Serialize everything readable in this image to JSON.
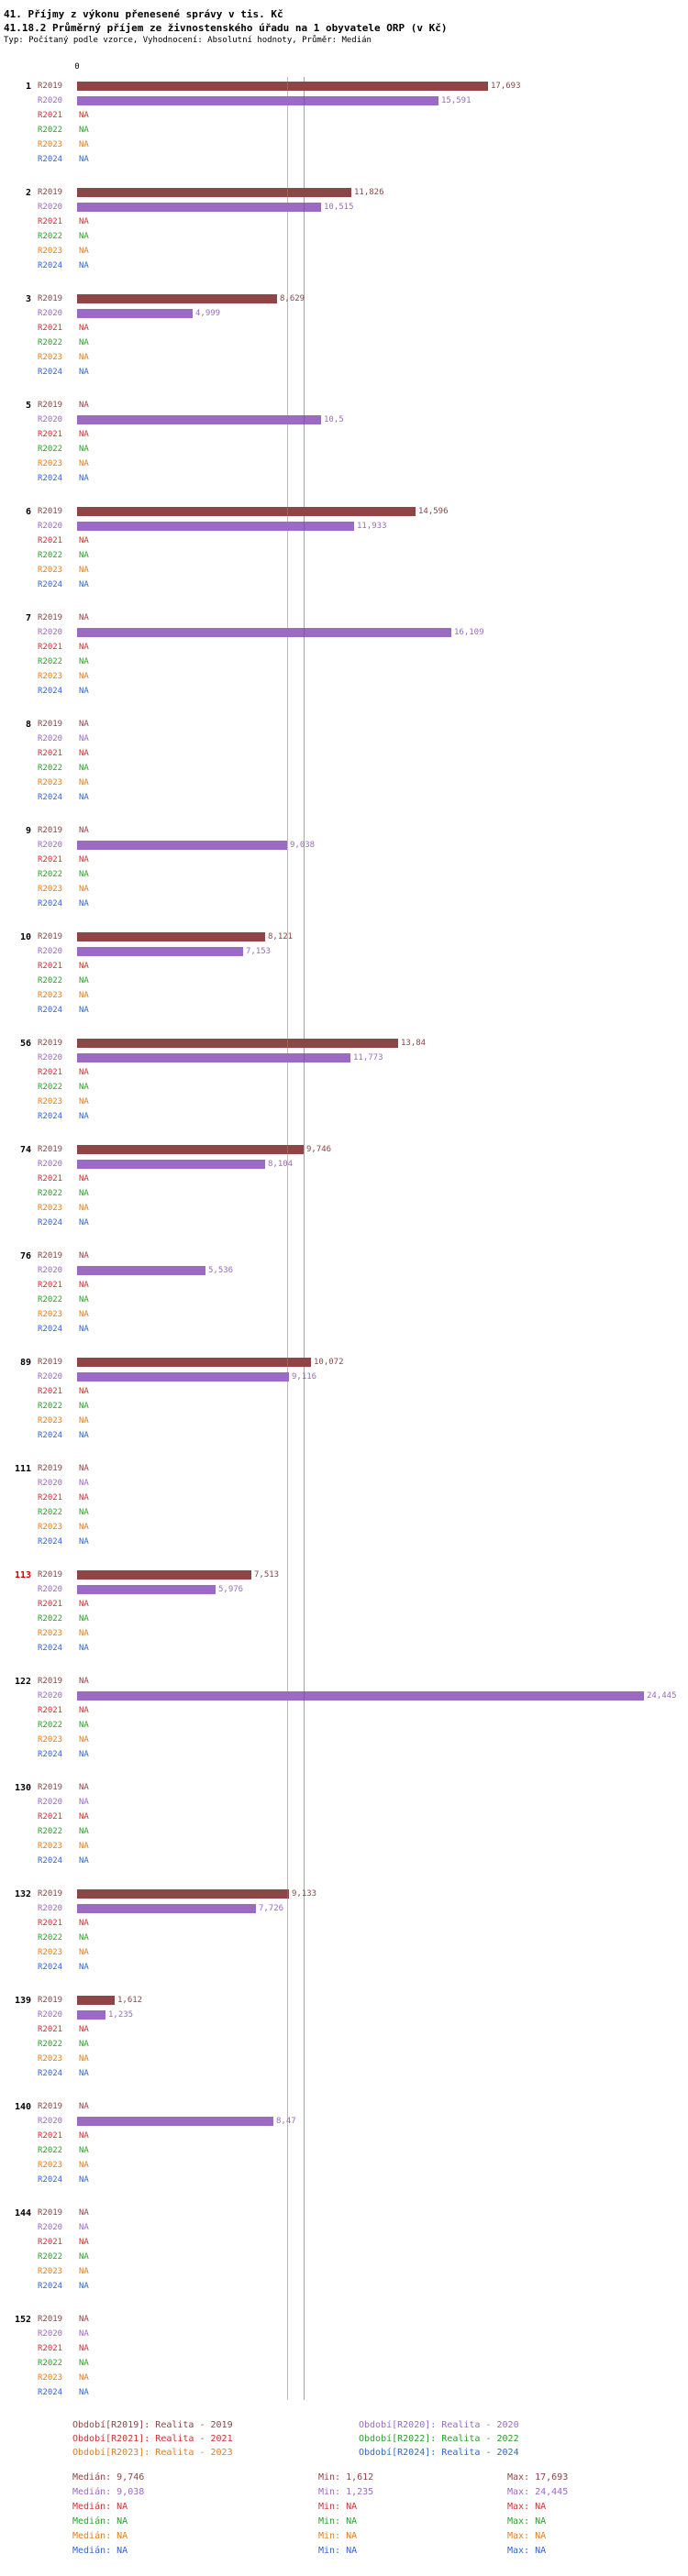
{
  "header": {
    "title1": "41. Příjmy z výkonu přenesené správy v tis. Kč",
    "title2": "41.18.2 Průměrný příjem ze živnostenského úřadu na 1 obyvatele ORP (v Kč)",
    "subtitle": "Typ: Počítaný podle vzorce, Vyhodnocení: Absolutní hodnoty, Průměr: Medián"
  },
  "chart_data": {
    "type": "bar",
    "orientation": "horizontal",
    "unit": "Kč",
    "axis_zero": "0",
    "xlim": [
      0,
      25
    ],
    "na_text": "NA",
    "years": [
      {
        "key": "R2019",
        "color": "#8c4646"
      },
      {
        "key": "R2020",
        "color": "#9a6ac4"
      },
      {
        "key": "R2021",
        "color": "#cc3333"
      },
      {
        "key": "R2022",
        "color": "#2e9e2e"
      },
      {
        "key": "R2023",
        "color": "#e07f1f"
      },
      {
        "key": "R2024",
        "color": "#3366cc"
      }
    ],
    "medians": {
      "R2019": 9.746,
      "R2020": 9.038
    },
    "highlight_color": "#cc0000",
    "groups": [
      {
        "id": "1",
        "highlight": false,
        "values": [
          17.693,
          15.591,
          null,
          null,
          null,
          null
        ],
        "labels": [
          "17,693",
          "15,591",
          "NA",
          "NA",
          "NA",
          "NA"
        ]
      },
      {
        "id": "2",
        "highlight": false,
        "values": [
          11.826,
          10.515,
          null,
          null,
          null,
          null
        ],
        "labels": [
          "11,826",
          "10,515",
          "NA",
          "NA",
          "NA",
          "NA"
        ]
      },
      {
        "id": "3",
        "highlight": false,
        "values": [
          8.629,
          4.999,
          null,
          null,
          null,
          null
        ],
        "labels": [
          "8,629",
          "4,999",
          "NA",
          "NA",
          "NA",
          "NA"
        ]
      },
      {
        "id": "5",
        "highlight": false,
        "values": [
          null,
          10.5,
          null,
          null,
          null,
          null
        ],
        "labels": [
          "NA",
          "10,5",
          "NA",
          "NA",
          "NA",
          "NA"
        ]
      },
      {
        "id": "6",
        "highlight": false,
        "values": [
          14.596,
          11.933,
          null,
          null,
          null,
          null
        ],
        "labels": [
          "14,596",
          "11,933",
          "NA",
          "NA",
          "NA",
          "NA"
        ]
      },
      {
        "id": "7",
        "highlight": false,
        "values": [
          null,
          16.109,
          null,
          null,
          null,
          null
        ],
        "labels": [
          "NA",
          "16,109",
          "NA",
          "NA",
          "NA",
          "NA"
        ]
      },
      {
        "id": "8",
        "highlight": false,
        "values": [
          null,
          null,
          null,
          null,
          null,
          null
        ],
        "labels": [
          "NA",
          "NA",
          "NA",
          "NA",
          "NA",
          "NA"
        ]
      },
      {
        "id": "9",
        "highlight": false,
        "values": [
          null,
          9.038,
          null,
          null,
          null,
          null
        ],
        "labels": [
          "NA",
          "9,038",
          "NA",
          "NA",
          "NA",
          "NA"
        ]
      },
      {
        "id": "10",
        "highlight": false,
        "values": [
          8.121,
          7.153,
          null,
          null,
          null,
          null
        ],
        "labels": [
          "8,121",
          "7,153",
          "NA",
          "NA",
          "NA",
          "NA"
        ]
      },
      {
        "id": "56",
        "highlight": false,
        "values": [
          13.84,
          11.773,
          null,
          null,
          null,
          null
        ],
        "labels": [
          "13,84",
          "11,773",
          "NA",
          "NA",
          "NA",
          "NA"
        ]
      },
      {
        "id": "74",
        "highlight": false,
        "values": [
          9.746,
          8.104,
          null,
          null,
          null,
          null
        ],
        "labels": [
          "9,746",
          "8,104",
          "NA",
          "NA",
          "NA",
          "NA"
        ]
      },
      {
        "id": "76",
        "highlight": false,
        "values": [
          null,
          5.536,
          null,
          null,
          null,
          null
        ],
        "labels": [
          "NA",
          "5,536",
          "NA",
          "NA",
          "NA",
          "NA"
        ]
      },
      {
        "id": "89",
        "highlight": false,
        "values": [
          10.072,
          9.116,
          null,
          null,
          null,
          null
        ],
        "labels": [
          "10,072",
          "9,116",
          "NA",
          "NA",
          "NA",
          "NA"
        ]
      },
      {
        "id": "111",
        "highlight": false,
        "values": [
          null,
          null,
          null,
          null,
          null,
          null
        ],
        "labels": [
          "NA",
          "NA",
          "NA",
          "NA",
          "NA",
          "NA"
        ]
      },
      {
        "id": "113",
        "highlight": true,
        "values": [
          7.513,
          5.976,
          null,
          null,
          null,
          null
        ],
        "labels": [
          "7,513",
          "5,976",
          "NA",
          "NA",
          "NA",
          "NA"
        ]
      },
      {
        "id": "122",
        "highlight": false,
        "values": [
          null,
          24.445,
          null,
          null,
          null,
          null
        ],
        "labels": [
          "NA",
          "24,445",
          "NA",
          "NA",
          "NA",
          "NA"
        ]
      },
      {
        "id": "130",
        "highlight": false,
        "values": [
          null,
          null,
          null,
          null,
          null,
          null
        ],
        "labels": [
          "NA",
          "NA",
          "NA",
          "NA",
          "NA",
          "NA"
        ]
      },
      {
        "id": "132",
        "highlight": false,
        "values": [
          9.133,
          7.726,
          null,
          null,
          null,
          null
        ],
        "labels": [
          "9,133",
          "7,726",
          "NA",
          "NA",
          "NA",
          "NA"
        ]
      },
      {
        "id": "139",
        "highlight": false,
        "values": [
          1.612,
          1.235,
          null,
          null,
          null,
          null
        ],
        "labels": [
          "1,612",
          "1,235",
          "NA",
          "NA",
          "NA",
          "NA"
        ]
      },
      {
        "id": "140",
        "highlight": false,
        "values": [
          null,
          8.47,
          null,
          null,
          null,
          null
        ],
        "labels": [
          "NA",
          "8,47",
          "NA",
          "NA",
          "NA",
          "NA"
        ]
      },
      {
        "id": "144",
        "highlight": false,
        "values": [
          null,
          null,
          null,
          null,
          null,
          null
        ],
        "labels": [
          "NA",
          "NA",
          "NA",
          "NA",
          "NA",
          "NA"
        ]
      },
      {
        "id": "152",
        "highlight": false,
        "values": [
          null,
          null,
          null,
          null,
          null,
          null
        ],
        "labels": [
          "NA",
          "NA",
          "NA",
          "NA",
          "NA",
          "NA"
        ]
      }
    ]
  },
  "legend": {
    "items": [
      {
        "year": "R2019",
        "text": "Období[R2019]: Realita - 2019"
      },
      {
        "year": "R2020",
        "text": "Období[R2020]: Realita - 2020"
      },
      {
        "year": "R2021",
        "text": "Období[R2021]: Realita - 2021"
      },
      {
        "year": "R2022",
        "text": "Období[R2022]: Realita - 2022"
      },
      {
        "year": "R2023",
        "text": "Období[R2023]: Realita - 2023"
      },
      {
        "year": "R2024",
        "text": "Období[R2024]: Realita - 2024"
      }
    ]
  },
  "stats": {
    "rows": [
      {
        "year": "R2019",
        "median": "Medián: 9,746",
        "min": "Min: 1,612",
        "max": "Max: 17,693"
      },
      {
        "year": "R2020",
        "median": "Medián: 9,038",
        "min": "Min: 1,235",
        "max": "Max: 24,445"
      },
      {
        "year": "R2021",
        "median": "Medián: NA",
        "min": "Min: NA",
        "max": "Max: NA"
      },
      {
        "year": "R2022",
        "median": "Medián: NA",
        "min": "Min: NA",
        "max": "Max: NA"
      },
      {
        "year": "R2023",
        "median": "Medián: NA",
        "min": "Min: NA",
        "max": "Max: NA"
      },
      {
        "year": "R2024",
        "median": "Medián: NA",
        "min": "Min: NA",
        "max": "Max: NA"
      }
    ]
  }
}
